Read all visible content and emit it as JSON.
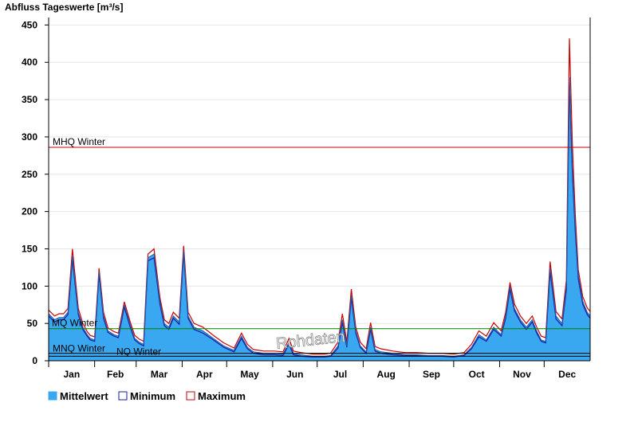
{
  "chart_data": {
    "type": "area",
    "title": "Abfluss Tageswerte [m³/s]",
    "ylim": [
      0,
      460
    ],
    "yticks": [
      0,
      50,
      100,
      150,
      200,
      250,
      300,
      350,
      400,
      450
    ],
    "months": [
      "Jan",
      "Feb",
      "Mar",
      "Apr",
      "May",
      "Jun",
      "Jul",
      "Aug",
      "Sep",
      "Oct",
      "Nov",
      "Dec"
    ],
    "grid": true,
    "legend_position": "bottom-left",
    "watermark": "Rohdaten",
    "colors": {
      "fill": "#3aa8f0",
      "minimum": "#1a1aa0",
      "maximum": "#cc0000",
      "mhq": "#cc0000",
      "mq": "#008000",
      "mnq": "#000000",
      "nq": "#000000",
      "grid": "#e6e6e6"
    },
    "reference_lines": [
      {
        "label": "MHQ Winter",
        "value": 286,
        "color": "#cc0000"
      },
      {
        "label": "MQ Winter",
        "value": 43,
        "color": "#008000"
      },
      {
        "label": "MNQ Winter",
        "value": 10,
        "color": "#000000"
      },
      {
        "label": "NQ Winter",
        "value": 6,
        "color": "#000000"
      }
    ],
    "series": [
      {
        "name": "Mittelwert",
        "color": "#3aa8f0"
      },
      {
        "name": "Minimum",
        "color": "#1a1aa0"
      },
      {
        "name": "Maximum",
        "color": "#cc0000"
      }
    ],
    "x_days": [
      0,
      4,
      7,
      10,
      13,
      16,
      20,
      23,
      26,
      28,
      31,
      34,
      37,
      40,
      44,
      47,
      51,
      55,
      58,
      61,
      64,
      67,
      71,
      75,
      78,
      81,
      84,
      88,
      91,
      94,
      98,
      104,
      111,
      118,
      125,
      130,
      134,
      138,
      145,
      152,
      158,
      162,
      165,
      170,
      178,
      186,
      190,
      195,
      198,
      201,
      204,
      207,
      210,
      214,
      217,
      220,
      224,
      232,
      240,
      248,
      256,
      265,
      273,
      280,
      285,
      290,
      295,
      300,
      305,
      308,
      311,
      314,
      318,
      322,
      326,
      329,
      332,
      335,
      338,
      342,
      346,
      349,
      351,
      353,
      355,
      357,
      360,
      363,
      365
    ],
    "mittelwert": [
      63,
      55,
      58,
      58,
      65,
      140,
      65,
      45,
      35,
      30,
      28,
      120,
      60,
      40,
      35,
      33,
      75,
      48,
      30,
      25,
      22,
      138,
      143,
      80,
      50,
      45,
      60,
      52,
      148,
      60,
      45,
      40,
      30,
      20,
      14,
      33,
      18,
      12,
      10,
      10,
      9,
      25,
      10,
      8,
      6,
      6,
      7,
      20,
      55,
      20,
      88,
      40,
      20,
      12,
      45,
      15,
      12,
      10,
      8,
      8,
      7,
      7,
      6,
      8,
      18,
      35,
      28,
      45,
      35,
      60,
      100,
      70,
      55,
      45,
      55,
      40,
      28,
      26,
      125,
      60,
      50,
      100,
      380,
      260,
      180,
      115,
      80,
      65,
      60
    ],
    "minimum": [
      60,
      52,
      55,
      55,
      62,
      136,
      62,
      42,
      33,
      28,
      26,
      116,
      57,
      38,
      33,
      31,
      72,
      45,
      28,
      23,
      20,
      134,
      138,
      76,
      47,
      42,
      57,
      49,
      144,
      57,
      42,
      37,
      28,
      18,
      12,
      30,
      16,
      10,
      8,
      8,
      7,
      22,
      8,
      6,
      5,
      5,
      6,
      17,
      51,
      18,
      84,
      37,
      18,
      10,
      42,
      13,
      10,
      8,
      7,
      7,
      6,
      6,
      5,
      7,
      16,
      32,
      26,
      42,
      33,
      57,
      96,
      67,
      52,
      42,
      52,
      37,
      26,
      24,
      120,
      56,
      47,
      95,
      372,
      250,
      172,
      110,
      76,
      62,
      57
    ],
    "maximum": [
      68,
      60,
      63,
      63,
      70,
      150,
      70,
      50,
      39,
      34,
      32,
      124,
      65,
      44,
      39,
      37,
      79,
      52,
      34,
      29,
      26,
      143,
      150,
      85,
      55,
      50,
      65,
      57,
      154,
      65,
      50,
      45,
      34,
      24,
      17,
      37,
      22,
      15,
      13,
      13,
      12,
      30,
      13,
      11,
      9,
      9,
      10,
      25,
      63,
      25,
      96,
      45,
      25,
      16,
      51,
      19,
      16,
      13,
      11,
      11,
      10,
      10,
      9,
      11,
      22,
      40,
      33,
      51,
      40,
      65,
      105,
      76,
      60,
      50,
      60,
      45,
      33,
      31,
      133,
      66,
      56,
      108,
      432,
      290,
      195,
      122,
      86,
      71,
      66
    ]
  }
}
